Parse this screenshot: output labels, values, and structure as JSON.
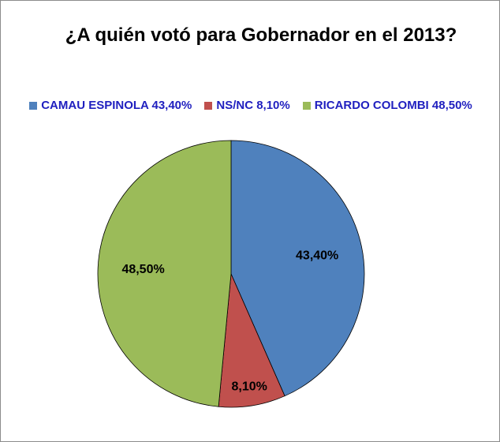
{
  "chart_data": {
    "type": "pie",
    "title": "¿A quién votó para Gobernador en el 2013?",
    "legend_position": "top",
    "slices": [
      {
        "name": "CAMAU ESPINOLA 43,40%",
        "value": 43.4,
        "label": "43,40%",
        "color": "#4f81bd"
      },
      {
        "name": "NS/NC 8,10%",
        "value": 8.1,
        "label": "8,10%",
        "color": "#c0504d"
      },
      {
        "name": "RICARDO COLOMBI 48,50%",
        "value": 48.5,
        "label": "48,50%",
        "color": "#9bbb59"
      }
    ],
    "legend_text_color": "#1f1fbf"
  }
}
